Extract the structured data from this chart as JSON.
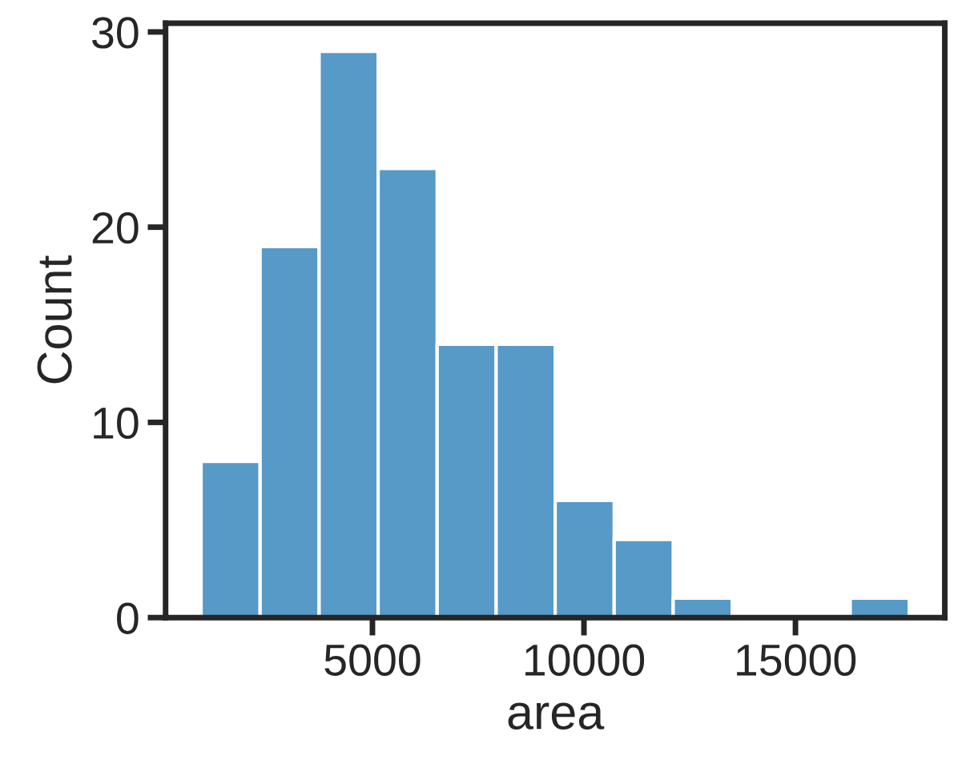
{
  "chart_data": {
    "type": "histogram",
    "xlabel": "area",
    "ylabel": "Count",
    "bins": [
      950,
      2345,
      3740,
      5135,
      6530,
      7925,
      9320,
      10715,
      12110,
      13505,
      14900,
      16295,
      17690
    ],
    "values": [
      8,
      19,
      29,
      23,
      14,
      14,
      6,
      4,
      1,
      0,
      0,
      1
    ],
    "color": "#5799c7",
    "xlim": [
      110,
      18530
    ],
    "xticks": [
      5000,
      10000,
      15000
    ],
    "ylim": [
      0,
      30.45
    ],
    "yticks": [
      0,
      10,
      20,
      30
    ],
    "grid": false
  }
}
